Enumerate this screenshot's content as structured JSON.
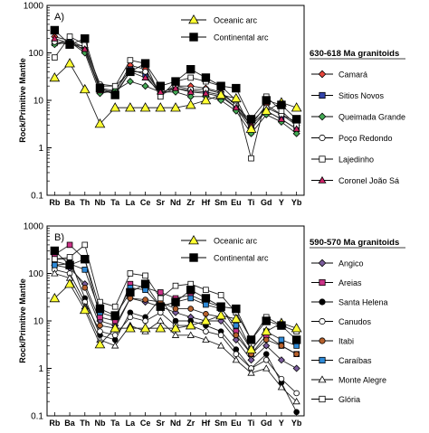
{
  "chart_data": [
    {
      "type": "line",
      "panel_label": "A)",
      "ylabel": "Rock/Primitive Mantle",
      "yscale": "log",
      "ylim": [
        0.1,
        1000
      ],
      "y_ticks": [
        "0.1",
        "1",
        "10",
        "100",
        "1000"
      ],
      "categories": [
        "Rb",
        "Ba",
        "Th",
        "Nb",
        "Ta",
        "La",
        "Ce",
        "Sr",
        "Nd",
        "Zr",
        "Hf",
        "Sm",
        "Eu",
        "Ti",
        "Gd",
        "Y",
        "Yb"
      ],
      "reference_legend": [
        "Oceanic arc",
        "Continental arc"
      ],
      "legend_title": "630-618 Ma granitoids",
      "reference_series": [
        {
          "name": "Oceanic arc",
          "marker": "triangle",
          "fill": "#ffff33",
          "values": [
            30,
            60,
            17,
            3.2,
            7,
            7,
            7,
            7,
            7,
            8,
            10,
            13,
            11,
            2.5,
            6,
            9,
            7
          ]
        },
        {
          "name": "Continental arc",
          "marker": "square",
          "fill": "#000000",
          "values": [
            300,
            150,
            200,
            18,
            13,
            40,
            60,
            20,
            25,
            45,
            30,
            20,
            18,
            4,
            10,
            8,
            4
          ]
        }
      ],
      "series": [
        {
          "name": "Camará",
          "marker": "diamond",
          "fill": "#e8463c",
          "values": [
            220,
            180,
            130,
            17,
            15,
            55,
            45,
            14,
            20,
            20,
            18,
            15,
            8,
            3,
            8,
            5,
            3
          ]
        },
        {
          "name": "Sitios Novos",
          "marker": "square",
          "fill": "#3344aa",
          "values": [
            160,
            180,
            110,
            18,
            16,
            45,
            35,
            13,
            18,
            16,
            15,
            13,
            7,
            2.5,
            6,
            4,
            2.5
          ]
        },
        {
          "name": "Queimada Grande",
          "marker": "diamond",
          "fill": "#44aa55",
          "values": [
            150,
            170,
            100,
            14,
            16,
            25,
            20,
            15,
            15,
            12,
            12,
            10,
            6,
            2,
            5,
            3.5,
            2
          ]
        },
        {
          "name": "Poço Redondo",
          "marker": "circle",
          "fill": "#ffffff",
          "values": [
            170,
            150,
            140,
            22,
            20,
            40,
            40,
            14,
            20,
            17,
            17,
            14,
            8,
            3.5,
            7,
            5,
            3.5
          ]
        },
        {
          "name": "Lajedinho",
          "marker": "square",
          "fill": "#ffffff",
          "values": [
            80,
            220,
            150,
            20,
            20,
            70,
            60,
            12,
            25,
            30,
            25,
            20,
            10,
            0.6,
            12,
            6,
            3
          ]
        },
        {
          "name": "Coronel João Sá",
          "marker": "triangle",
          "fill": "#cc2266",
          "values": [
            200,
            160,
            120,
            16,
            14,
            40,
            30,
            15,
            18,
            15,
            14,
            12,
            7,
            3,
            6,
            4,
            2.5
          ]
        }
      ]
    },
    {
      "type": "line",
      "panel_label": "B)",
      "ylabel": "Rock/Primitive Mantle",
      "yscale": "log",
      "ylim": [
        0.1,
        1000
      ],
      "y_ticks": [
        "0.1",
        "1",
        "10",
        "100",
        "1000"
      ],
      "categories": [
        "Rb",
        "Ba",
        "Th",
        "Nb",
        "Ta",
        "La",
        "Ce",
        "Sr",
        "Nd",
        "Zr",
        "Hf",
        "Sm",
        "Eu",
        "Ti",
        "Gd",
        "Y",
        "Yb"
      ],
      "reference_legend": [
        "Oceanic arc",
        "Continental arc"
      ],
      "legend_title": "590-570 Ma granitoids",
      "reference_series": [
        {
          "name": "Oceanic arc",
          "marker": "triangle",
          "fill": "#ffff33",
          "values": [
            30,
            60,
            17,
            3.2,
            7,
            7,
            7,
            7,
            7,
            8,
            10,
            13,
            11,
            2.5,
            6,
            9,
            7
          ]
        },
        {
          "name": "Continental arc",
          "marker": "square",
          "fill": "#000000",
          "values": [
            300,
            150,
            200,
            18,
            13,
            40,
            60,
            20,
            25,
            45,
            30,
            20,
            18,
            4,
            10,
            8,
            4
          ]
        }
      ],
      "series": [
        {
          "name": "Angico",
          "marker": "diamond",
          "fill": "#7a5c9c",
          "values": [
            150,
            130,
            60,
            10,
            8,
            30,
            25,
            20,
            15,
            12,
            10,
            10,
            4,
            1.5,
            3,
            1.5,
            1
          ]
        },
        {
          "name": "Areias",
          "marker": "square",
          "fill": "#cc3388",
          "values": [
            250,
            400,
            200,
            12,
            10,
            60,
            50,
            40,
            30,
            35,
            25,
            20,
            6,
            2,
            5,
            3,
            2
          ]
        },
        {
          "name": "Santa Helena",
          "marker": "circle",
          "fill": "#000000",
          "values": [
            200,
            200,
            30,
            5,
            4,
            15,
            12,
            30,
            10,
            10,
            8,
            6,
            2.5,
            1,
            2,
            0.5,
            0.12
          ]
        },
        {
          "name": "Canudos",
          "marker": "circle",
          "fill": "#ffffff",
          "values": [
            120,
            100,
            25,
            6,
            5,
            12,
            10,
            15,
            8,
            8,
            6,
            5,
            2,
            1,
            1.5,
            0.6,
            0.3
          ]
        },
        {
          "name": "Itabi",
          "marker": "circle",
          "fill": "#b8612c",
          "values": [
            180,
            150,
            50,
            8,
            7,
            30,
            28,
            25,
            18,
            18,
            14,
            12,
            5,
            2,
            4,
            3,
            2
          ]
        },
        {
          "name": "Caraíbas",
          "marker": "square",
          "fill": "#2e8ad8",
          "values": [
            150,
            160,
            120,
            15,
            12,
            50,
            45,
            20,
            25,
            30,
            22,
            18,
            8,
            2.5,
            6,
            4,
            3
          ]
        },
        {
          "name": "Monte Alegre",
          "marker": "triangle",
          "fill": "#ffffff",
          "values": [
            100,
            80,
            20,
            4,
            3,
            8,
            6,
            10,
            5,
            5,
            4,
            3,
            1.5,
            0.8,
            1,
            0.4,
            0.2
          ]
        },
        {
          "name": "Glória",
          "marker": "square",
          "fill": "#ffffff",
          "values": [
            200,
            220,
            400,
            25,
            20,
            100,
            90,
            30,
            55,
            60,
            45,
            35,
            15,
            4,
            12,
            8,
            6
          ]
        }
      ]
    }
  ]
}
